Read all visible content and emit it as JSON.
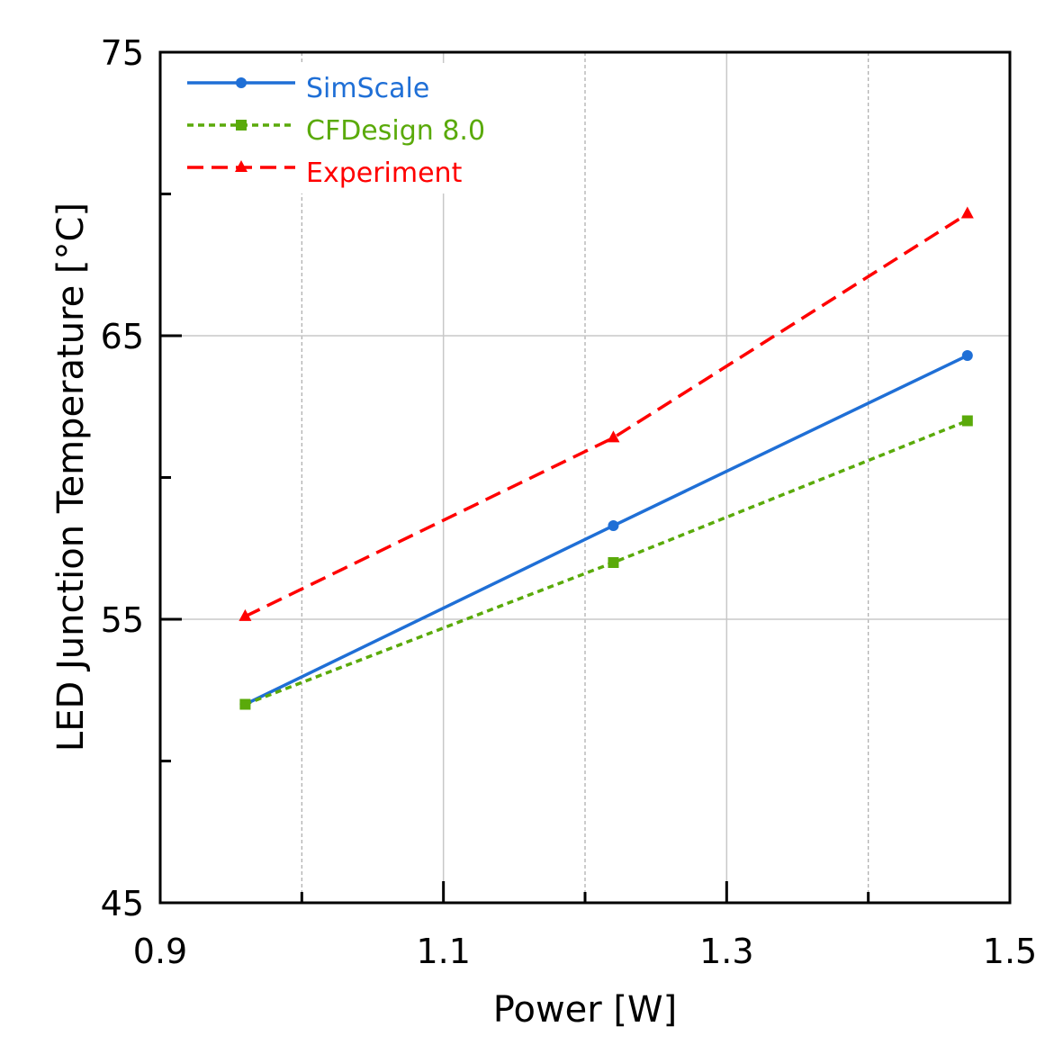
{
  "chart_data": {
    "type": "line",
    "title": "",
    "xlabel": "Power [W]",
    "ylabel": "LED Junction Temperature [°C]",
    "xlim": [
      0.9,
      1.5
    ],
    "ylim": [
      45,
      75
    ],
    "x_ticks": [
      "0.9",
      "1.1",
      "1.3",
      "1.5"
    ],
    "x_tick_values": [
      0.9,
      1.1,
      1.3,
      1.5
    ],
    "x_minor_tick_values": [
      1.0,
      1.2,
      1.4
    ],
    "y_ticks": [
      "45",
      "55",
      "65",
      "75"
    ],
    "y_tick_values": [
      45,
      55,
      65,
      75
    ],
    "y_minor_tick_values": [
      50,
      60,
      70
    ],
    "grid": true,
    "legend_position": "top-left",
    "series": [
      {
        "name": "SimScale",
        "color": "#1f6fd6",
        "marker": "circle",
        "line_style": "solid",
        "x": [
          0.96,
          1.22,
          1.47
        ],
        "y": [
          52.0,
          58.3,
          64.3
        ]
      },
      {
        "name": "CFDesign 8.0",
        "color": "#5aaa0a",
        "marker": "square",
        "line_style": "dotted",
        "x": [
          0.96,
          1.22,
          1.47
        ],
        "y": [
          52.0,
          57.0,
          62.0
        ]
      },
      {
        "name": "Experiment",
        "color": "#ff0000",
        "marker": "triangle",
        "line_style": "dashed",
        "x": [
          0.96,
          1.22,
          1.47
        ],
        "y": [
          55.1,
          61.4,
          69.3
        ]
      }
    ]
  }
}
